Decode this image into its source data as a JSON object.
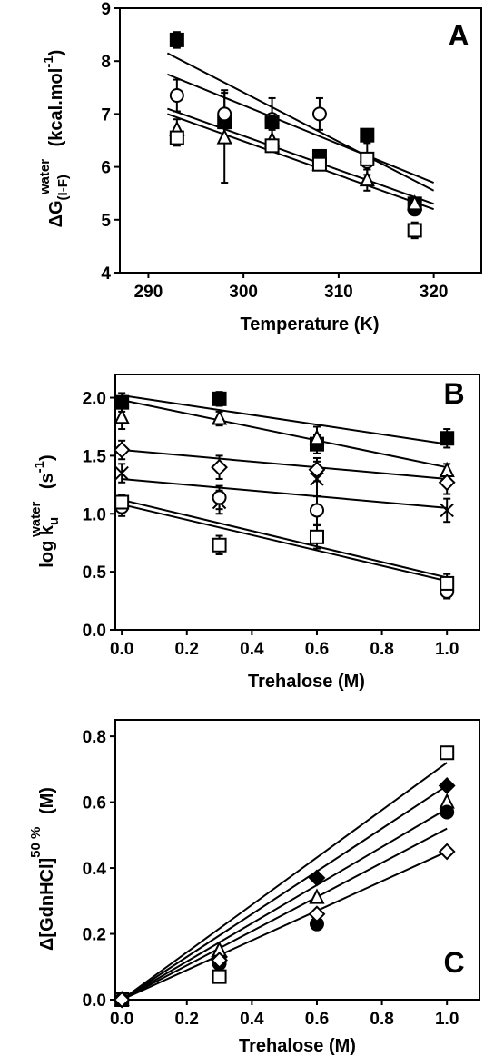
{
  "chart_data": [
    {
      "panel": "A",
      "type": "scatter",
      "xlabel": "Temperature (K)",
      "ylabel": {
        "main": "ΔG",
        "sub": "(I-F)",
        "sup": "water",
        "unit": "(kcal.mol",
        "unit_sup": "-1",
        "unit_end": ")"
      },
      "xlim": [
        287,
        325
      ],
      "ylim": [
        4,
        9
      ],
      "xticks": [
        "290",
        "300",
        "310",
        "320"
      ],
      "yticks": [
        "4",
        "5",
        "6",
        "7",
        "8",
        "9"
      ],
      "grid": false,
      "series": [
        {
          "marker": "filled-square",
          "x": [
            293,
            298,
            303,
            308,
            313,
            318
          ],
          "y": [
            8.4,
            6.85,
            6.85,
            6.2,
            6.6,
            5.3
          ],
          "err": [
            0.15,
            0.1,
            0.1,
            0.1,
            0.1,
            0.1
          ],
          "fit": [
            [
              292,
              8.15
            ],
            [
              320,
              5.55
            ]
          ]
        },
        {
          "marker": "open-circle",
          "x": [
            293,
            298,
            303,
            308,
            313,
            318
          ],
          "y": [
            7.35,
            7.0,
            6.9,
            7.0,
            6.1,
            5.2
          ],
          "err": [
            0.3,
            0.45,
            0.4,
            0.3,
            0.15,
            0.1
          ],
          "fit": [
            [
              292,
              7.75
            ],
            [
              320,
              5.7
            ]
          ]
        },
        {
          "marker": "filled-circle",
          "x": [
            303,
            318
          ],
          "y": [
            6.85,
            5.2
          ],
          "err": [
            0,
            0
          ],
          "fit": []
        },
        {
          "marker": "open-triangle",
          "x": [
            293,
            298,
            303,
            308,
            313,
            318
          ],
          "y": [
            6.7,
            6.55,
            6.5,
            6.05,
            5.75,
            5.3
          ],
          "err": [
            0.2,
            0.85,
            0.2,
            0.1,
            0.2,
            0.1
          ],
          "fit": [
            [
              292,
              7.1
            ],
            [
              320,
              5.3
            ]
          ]
        },
        {
          "marker": "open-square",
          "x": [
            293,
            303,
            308,
            313,
            318
          ],
          "y": [
            6.55,
            6.4,
            6.05,
            6.15,
            4.8
          ],
          "err": [
            0.15,
            0.1,
            0.1,
            0.3,
            0.15
          ],
          "fit": [
            [
              292,
              7.0
            ],
            [
              320,
              5.2
            ]
          ]
        }
      ]
    },
    {
      "panel": "B",
      "type": "scatter",
      "xlabel": "Trehalose (M)",
      "ylabel": {
        "main": "log k",
        "sub": "u",
        "sup": "water",
        "unit": "(s",
        "unit_sup": "-1",
        "unit_end": ")"
      },
      "xlim": [
        -0.02,
        1.1
      ],
      "ylim": [
        0,
        2.2
      ],
      "xticks": [
        "0.0",
        "0.2",
        "0.4",
        "0.6",
        "0.8",
        "1.0"
      ],
      "yticks": [
        "0.0",
        "0.5",
        "1.0",
        "1.5",
        "2.0"
      ],
      "grid": false,
      "series": [
        {
          "marker": "filled-square",
          "x": [
            0.0,
            0.3,
            0.6,
            1.0
          ],
          "y": [
            1.96,
            1.99,
            1.6,
            1.65
          ],
          "err": [
            0.08,
            0.06,
            0.08,
            0.08
          ],
          "fit": [
            [
              0.0,
              2.02
            ],
            [
              1.0,
              1.6
            ]
          ]
        },
        {
          "marker": "open-triangle",
          "x": [
            0.0,
            0.3,
            0.6,
            1.0
          ],
          "y": [
            1.83,
            1.82,
            1.65,
            1.37
          ],
          "err": [
            0.1,
            0.06,
            0.1,
            0.06
          ],
          "fit": [
            [
              0.0,
              1.98
            ],
            [
              1.0,
              1.4
            ]
          ]
        },
        {
          "marker": "open-diamond",
          "x": [
            0.0,
            0.3,
            0.6,
            1.0
          ],
          "y": [
            1.55,
            1.4,
            1.38,
            1.27
          ],
          "err": [
            0.08,
            0.1,
            0.1,
            0.1
          ],
          "fit": [
            [
              0.0,
              1.55
            ],
            [
              1.0,
              1.3
            ]
          ]
        },
        {
          "marker": "cross",
          "x": [
            0.0,
            0.3,
            0.6,
            1.0
          ],
          "y": [
            1.35,
            1.1,
            1.3,
            1.03
          ],
          "err": [
            0.08,
            0.1,
            0.15,
            0.1
          ],
          "fit": [
            [
              0.0,
              1.3
            ],
            [
              1.0,
              1.05
            ]
          ]
        },
        {
          "marker": "open-circle",
          "x": [
            0.0,
            0.3,
            0.6,
            1.0
          ],
          "y": [
            1.06,
            1.14,
            1.03,
            0.33
          ],
          "err": [
            0.08,
            0.1,
            0.12,
            0.06
          ],
          "fit": [
            [
              0.0,
              1.12
            ],
            [
              1.0,
              0.45
            ]
          ]
        },
        {
          "marker": "open-square",
          "x": [
            0.0,
            0.3,
            0.6,
            1.0
          ],
          "y": [
            1.1,
            0.73,
            0.8,
            0.4
          ],
          "err": [
            0.06,
            0.08,
            0.1,
            0.08
          ],
          "fit": [
            [
              0.0,
              1.08
            ],
            [
              1.0,
              0.42
            ]
          ]
        }
      ]
    },
    {
      "panel": "C",
      "type": "scatter",
      "xlabel": "Trehalose (M)",
      "ylabel": {
        "main": "Δ[GdnHCl]",
        "sub": "",
        "sup": "50 %",
        "unit": "(M)",
        "unit_sup": "",
        "unit_end": ""
      },
      "xlim": [
        -0.02,
        1.1
      ],
      "ylim": [
        0,
        0.85
      ],
      "xticks": [
        "0.0",
        "0.2",
        "0.4",
        "0.6",
        "0.8",
        "1.0"
      ],
      "yticks": [
        "0.0",
        "0.2",
        "0.4",
        "0.6",
        "0.8"
      ],
      "grid": false,
      "series": [
        {
          "marker": "open-square",
          "x": [
            0.0,
            0.3,
            1.0
          ],
          "y": [
            0.0,
            0.07,
            0.75
          ],
          "err": [],
          "fit": [
            [
              0.0,
              0.0
            ],
            [
              1.0,
              0.72
            ]
          ]
        },
        {
          "marker": "filled-diamond",
          "x": [
            0.0,
            0.3,
            0.6,
            1.0
          ],
          "y": [
            0.0,
            0.13,
            0.37,
            0.65
          ],
          "err": [],
          "fit": [
            [
              0.0,
              0.0
            ],
            [
              1.0,
              0.65
            ]
          ]
        },
        {
          "marker": "open-triangle",
          "x": [
            0.0,
            0.3,
            0.6,
            1.0
          ],
          "y": [
            0.0,
            0.15,
            0.31,
            0.6
          ],
          "err": [],
          "fit": [
            [
              0.0,
              0.0
            ],
            [
              1.0,
              0.58
            ]
          ]
        },
        {
          "marker": "filled-circle",
          "x": [
            0.0,
            0.3,
            0.6,
            1.0
          ],
          "y": [
            0.0,
            0.11,
            0.23,
            0.57
          ],
          "err": [],
          "fit": [
            [
              0.0,
              0.0
            ],
            [
              1.0,
              0.52
            ]
          ]
        },
        {
          "marker": "open-diamond",
          "x": [
            0.0,
            0.3,
            0.6,
            1.0
          ],
          "y": [
            0.0,
            0.12,
            0.26,
            0.45
          ],
          "err": [],
          "fit": [
            [
              0.0,
              0.0
            ],
            [
              1.0,
              0.45
            ]
          ]
        }
      ]
    }
  ]
}
